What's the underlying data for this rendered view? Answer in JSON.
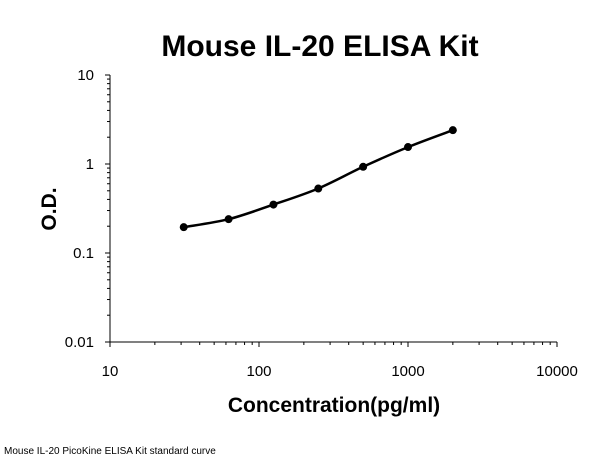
{
  "caption": "Mouse IL-20 PicoKine ELISA Kit standard curve",
  "colors": {
    "line": "#000000",
    "marker": "#000000",
    "background": "#ffffff"
  },
  "chart_data": {
    "type": "scatter",
    "title": "Mouse IL-20 ELISA Kit",
    "xlabel": "Concentration(pg/ml)",
    "ylabel": "O.D.",
    "xscale": "log",
    "yscale": "log",
    "xlim": [
      10,
      10000
    ],
    "ylim": [
      0.01,
      10
    ],
    "x_ticks": [
      "10",
      "100",
      "1000",
      "10000"
    ],
    "y_ticks": [
      "0.01",
      "0.1",
      "1",
      "10"
    ],
    "grid": false,
    "legend": "none",
    "series": [
      {
        "x": [
          31.25,
          62.5,
          125,
          250,
          500,
          1000,
          2000
        ],
        "y": [
          0.195,
          0.24,
          0.35,
          0.53,
          0.93,
          1.55,
          2.4
        ]
      }
    ]
  }
}
